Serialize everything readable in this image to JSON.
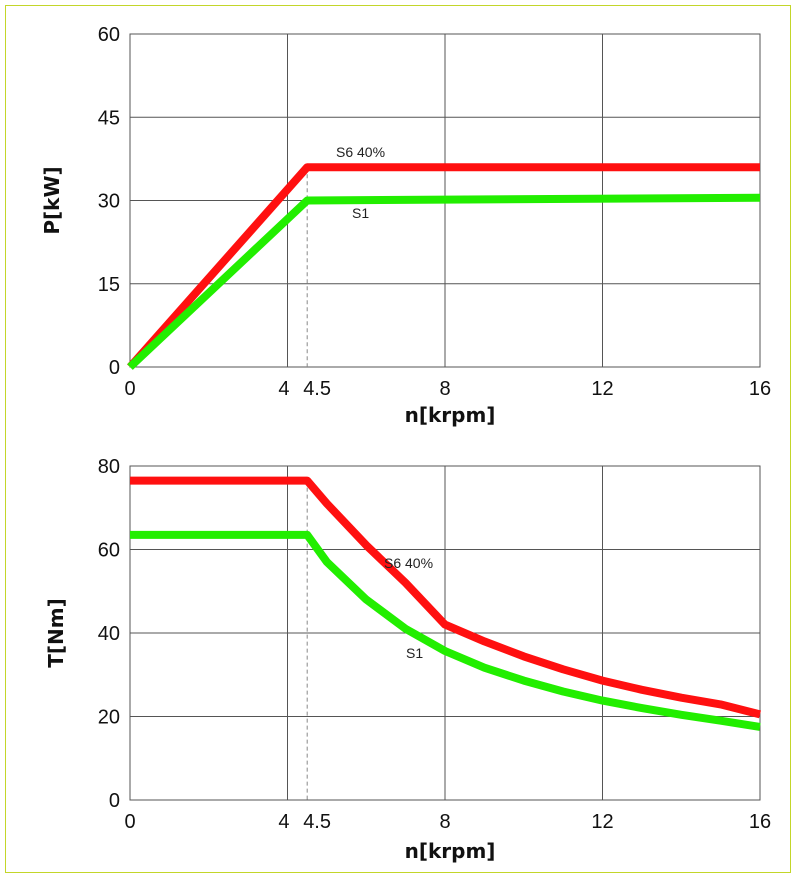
{
  "colors": {
    "border": "#c3d62a",
    "grid": "#555555",
    "s6": "#ff1010",
    "s1": "#22ee00"
  },
  "chart_data": [
    {
      "type": "line",
      "xlabel": "n[krpm]",
      "ylabel": "P[kW]",
      "xlim": [
        0,
        16
      ],
      "ylim": [
        0,
        60
      ],
      "xticks": [
        0,
        4,
        4.5,
        8,
        12,
        16
      ],
      "xtick_labels": [
        "0",
        "4",
        "4.5",
        "8",
        "12",
        "16"
      ],
      "yticks": [
        0,
        15,
        30,
        45,
        60
      ],
      "ytick_labels": [
        "0",
        "15",
        "30",
        "45",
        "60"
      ],
      "grid": true,
      "base_speed_marker": 4.5,
      "series": [
        {
          "name": "S6 40%",
          "color": "#ff1010",
          "x": [
            0,
            4.5,
            16
          ],
          "y": [
            0,
            36,
            36
          ]
        },
        {
          "name": "S1",
          "color": "#22ee00",
          "x": [
            0,
            4.5,
            16
          ],
          "y": [
            0,
            30,
            30.5
          ]
        }
      ]
    },
    {
      "type": "line",
      "xlabel": "n[krpm]",
      "ylabel": "T[Nm]",
      "xlim": [
        0,
        16
      ],
      "ylim": [
        0,
        80
      ],
      "xticks": [
        0,
        4,
        4.5,
        8,
        12,
        16
      ],
      "xtick_labels": [
        "0",
        "4",
        "4.5",
        "8",
        "12",
        "16"
      ],
      "yticks": [
        0,
        20,
        40,
        60,
        80
      ],
      "ytick_labels": [
        "0",
        "20",
        "40",
        "60",
        "80"
      ],
      "grid": true,
      "base_speed_marker": 4.5,
      "series": [
        {
          "name": "S6 40%",
          "color": "#ff1010",
          "x": [
            0,
            4.5,
            5,
            6,
            7,
            8,
            9,
            10,
            11,
            12,
            13,
            14,
            15,
            16
          ],
          "y": [
            76.5,
            76.5,
            71,
            61,
            52,
            42,
            38,
            34.4,
            31.3,
            28.6,
            26.4,
            24.5,
            22.9,
            20.5
          ]
        },
        {
          "name": "S1",
          "color": "#22ee00",
          "x": [
            0,
            4.5,
            5,
            6,
            7,
            8,
            9,
            10,
            11,
            12,
            13,
            14,
            15,
            16
          ],
          "y": [
            63.5,
            63.5,
            57,
            48,
            41,
            35.7,
            31.7,
            28.6,
            26,
            23.8,
            22,
            20.4,
            19,
            17.5
          ]
        }
      ]
    }
  ]
}
